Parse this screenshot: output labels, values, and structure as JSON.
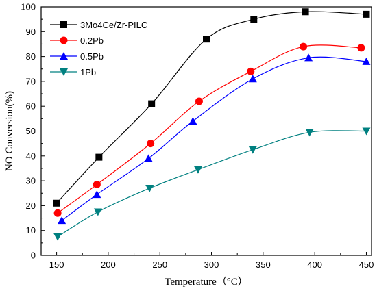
{
  "chart_data": {
    "type": "line",
    "title": "",
    "xlabel": "Temperature（°C）",
    "ylabel": "NO Conversion(%)",
    "xlim": [
      135,
      455
    ],
    "ylim": [
      0,
      100
    ],
    "xticks": [
      150,
      200,
      250,
      300,
      350,
      400,
      450
    ],
    "yticks": [
      0,
      10,
      20,
      30,
      40,
      50,
      60,
      70,
      80,
      90,
      100
    ],
    "grid": false,
    "legend_position": "top-left",
    "series": [
      {
        "name": "3Mo4Ce/Zr-PILC",
        "marker": "square",
        "color": "#000000",
        "x": [
          150,
          191,
          242,
          295,
          341,
          391,
          450
        ],
        "y": [
          21,
          39.5,
          61,
          87,
          95,
          98,
          97
        ]
      },
      {
        "name": "0.2Pb",
        "marker": "circle",
        "color": "#ff0000",
        "x": [
          151,
          189,
          241,
          288,
          338,
          389,
          445
        ],
        "y": [
          17,
          28.5,
          45,
          62,
          74,
          84,
          83.5
        ]
      },
      {
        "name": "0.5Pb",
        "marker": "triangle-up",
        "color": "#0000ff",
        "x": [
          155,
          189,
          239,
          282,
          340,
          394,
          450
        ],
        "y": [
          14,
          24.5,
          39,
          54,
          71,
          79.5,
          78
        ]
      },
      {
        "name": "1Pb",
        "marker": "triangle-down",
        "color": "#008080",
        "x": [
          151,
          190,
          240,
          287,
          340,
          395,
          450
        ],
        "y": [
          7.5,
          17.5,
          27,
          34.5,
          42.5,
          49.5,
          50
        ]
      }
    ]
  }
}
